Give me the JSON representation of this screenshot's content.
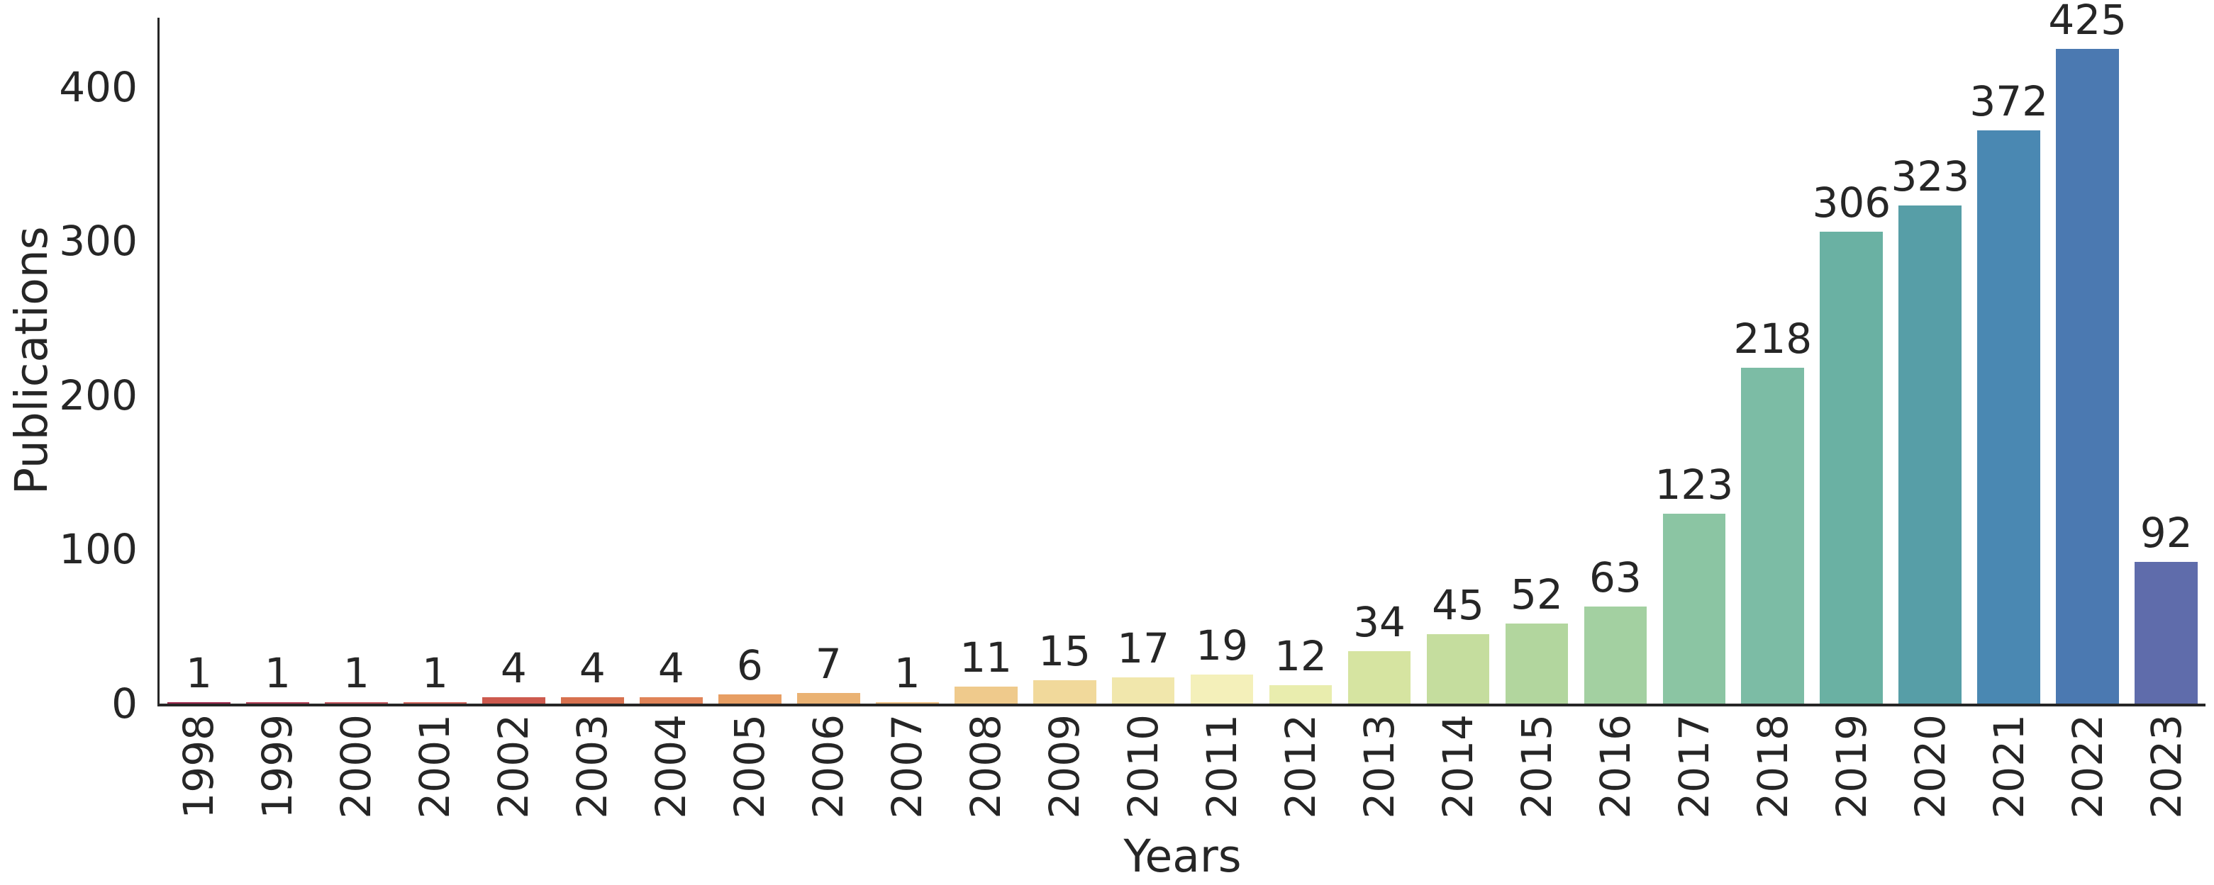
{
  "chart_data": {
    "type": "bar",
    "title": "",
    "xlabel": "Years",
    "ylabel": "Publications",
    "categories": [
      "1998",
      "1999",
      "2000",
      "2001",
      "2002",
      "2003",
      "2004",
      "2005",
      "2006",
      "2007",
      "2008",
      "2009",
      "2010",
      "2011",
      "2012",
      "2013",
      "2014",
      "2015",
      "2016",
      "2017",
      "2018",
      "2019",
      "2020",
      "2021",
      "2022",
      "2023"
    ],
    "values": [
      1,
      1,
      1,
      1,
      4,
      4,
      4,
      6,
      7,
      1,
      11,
      15,
      17,
      19,
      12,
      34,
      45,
      52,
      63,
      123,
      218,
      306,
      323,
      372,
      425,
      92
    ],
    "bar_value_labels": [
      "1",
      "1",
      "1",
      "1",
      "4",
      "4",
      "4",
      "6",
      "7",
      "1",
      "11",
      "15",
      "17",
      "19",
      "12",
      "34",
      "45",
      "52",
      "63",
      "123",
      "218",
      "306",
      "323",
      "372",
      "425",
      "92"
    ],
    "bar_colors": [
      "#9f2b4f",
      "#b44158",
      "#c5565e",
      "#d1655c",
      "#cd5a4e",
      "#d7714f",
      "#e08458",
      "#e79e63",
      "#eab273",
      "#edc083",
      "#efca8c",
      "#f1d99b",
      "#f1e7ac",
      "#f4f0ba",
      "#e9edae",
      "#d6e4a1",
      "#c5dd9e",
      "#b2d69e",
      "#a3d0a1",
      "#8bc5a3",
      "#7cbca5",
      "#6ab1a3",
      "#579ea7",
      "#4a88b2",
      "#4b79b1",
      "#5f6cab"
    ],
    "yticks": [
      "0",
      "100",
      "200",
      "300",
      "400"
    ],
    "ytick_values": [
      0,
      100,
      200,
      300,
      400
    ],
    "ylim": [
      0,
      445
    ],
    "grid": false,
    "legend": null,
    "palette_name": "Spectral",
    "text_color": "#262626",
    "spine_color": "#262626",
    "background_color": "#ffffff"
  }
}
